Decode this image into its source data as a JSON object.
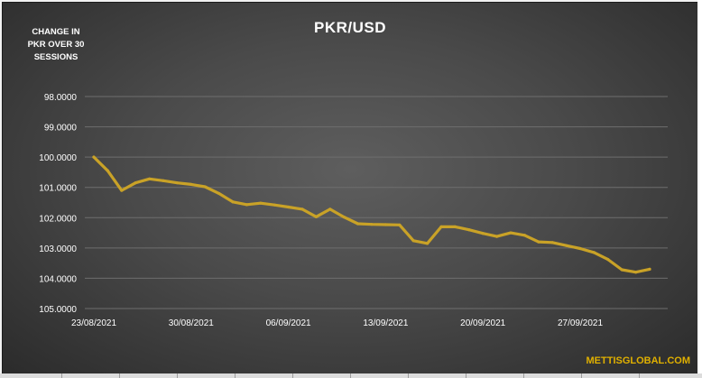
{
  "chart_data": {
    "type": "line",
    "title": "PKR/USD",
    "ylabel": "CHANGE IN PKR OVER 30 SESSIONS",
    "ylabel_lines": [
      "CHANGE IN",
      "PKR OVER 30",
      "SESSIONS"
    ],
    "source": "METTISGLOBAL.COM",
    "y_axis": {
      "reversed": true,
      "ylim": [
        98,
        105
      ],
      "ticks": [
        98,
        99,
        100,
        101,
        102,
        103,
        104,
        105
      ],
      "tick_labels": [
        "98.0000",
        "99.0000",
        "100.0000",
        "101.0000",
        "102.0000",
        "103.0000",
        "104.0000",
        "105.0000"
      ]
    },
    "x_axis": {
      "tick_labels": [
        "23/08/2021",
        "30/08/2021",
        "06/09/2021",
        "13/09/2021",
        "20/09/2021",
        "27/09/2021"
      ],
      "tick_index": [
        0,
        7,
        14,
        21,
        28,
        35
      ]
    },
    "grid": "horizontal",
    "legend": "none",
    "series": [
      {
        "color": "#c9a227",
        "points": [
          [
            "23/08/2021",
            100.0
          ],
          [
            "24/08/2021",
            100.45
          ],
          [
            "25/08/2021",
            101.1
          ],
          [
            "26/08/2021",
            100.85
          ],
          [
            "27/08/2021",
            100.72
          ],
          [
            "28/08/2021",
            100.78
          ],
          [
            "29/08/2021",
            100.85
          ],
          [
            "30/08/2021",
            100.9
          ],
          [
            "31/08/2021",
            100.98
          ],
          [
            "01/09/2021",
            101.2
          ],
          [
            "02/09/2021",
            101.48
          ],
          [
            "03/09/2021",
            101.57
          ],
          [
            "04/09/2021",
            101.52
          ],
          [
            "05/09/2021",
            101.58
          ],
          [
            "06/09/2021",
            101.65
          ],
          [
            "07/09/2021",
            101.72
          ],
          [
            "08/09/2021",
            101.97
          ],
          [
            "09/09/2021",
            101.72
          ],
          [
            "10/09/2021",
            101.98
          ],
          [
            "11/09/2021",
            102.2
          ],
          [
            "12/09/2021",
            102.22
          ],
          [
            "13/09/2021",
            102.23
          ],
          [
            "14/09/2021",
            102.24
          ],
          [
            "15/09/2021",
            102.76
          ],
          [
            "16/09/2021",
            102.85
          ],
          [
            "17/09/2021",
            102.3
          ],
          [
            "18/09/2021",
            102.3
          ],
          [
            "19/09/2021",
            102.4
          ],
          [
            "20/09/2021",
            102.52
          ],
          [
            "21/09/2021",
            102.62
          ],
          [
            "22/09/2021",
            102.5
          ],
          [
            "23/09/2021",
            102.58
          ],
          [
            "24/09/2021",
            102.8
          ],
          [
            "25/09/2021",
            102.82
          ],
          [
            "26/09/2021",
            102.92
          ],
          [
            "27/09/2021",
            103.02
          ],
          [
            "28/09/2021",
            103.15
          ],
          [
            "29/09/2021",
            103.38
          ],
          [
            "30/09/2021",
            103.72
          ],
          [
            "01/10/2021",
            103.8
          ],
          [
            "02/10/2021",
            103.7
          ]
        ]
      }
    ]
  }
}
